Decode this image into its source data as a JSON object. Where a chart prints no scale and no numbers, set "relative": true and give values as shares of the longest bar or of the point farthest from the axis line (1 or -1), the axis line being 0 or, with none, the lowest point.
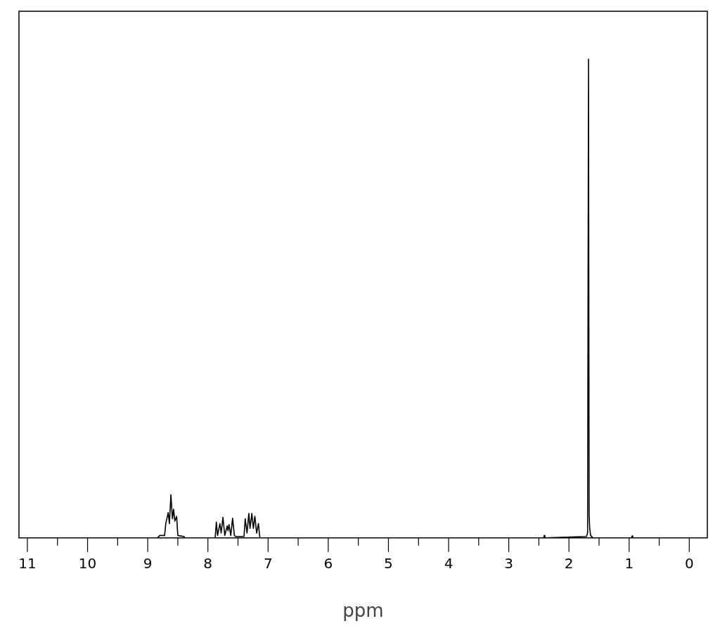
{
  "chart_data": {
    "type": "line",
    "xlabel": "ppm",
    "relative": true,
    "color": "#000000",
    "xlim": [
      11.14,
      -0.3
    ],
    "xticks": [
      11,
      {
        "value": 10.5,
        "label": null
      },
      10,
      {
        "value": 9.5,
        "label": null
      },
      9,
      {
        "value": 8.5,
        "label": null
      },
      8,
      {
        "value": 7.5,
        "label": null
      },
      7,
      {
        "value": 6.5,
        "label": null
      },
      6,
      {
        "value": 5.5,
        "label": null
      },
      5,
      {
        "value": 4.5,
        "label": null
      },
      4,
      {
        "value": 3.5,
        "label": null
      },
      3,
      {
        "value": 2.5,
        "label": null
      },
      2,
      {
        "value": 1.5,
        "label": null
      },
      1,
      {
        "value": 0.5,
        "label": null
      },
      0
    ],
    "x": [
      11.14,
      8.84,
      8.8,
      8.72,
      8.7,
      8.66,
      8.64,
      8.615,
      8.59,
      8.57,
      8.55,
      8.52,
      8.5,
      8.4,
      8.38,
      7.88,
      7.86,
      7.84,
      7.8,
      7.78,
      7.75,
      7.72,
      7.68,
      7.665,
      7.65,
      7.62,
      7.59,
      7.56,
      7.54,
      7.4,
      7.38,
      7.35,
      7.32,
      7.3,
      7.27,
      7.245,
      7.22,
      7.19,
      7.16,
      7.14,
      7.13,
      2.42,
      2.41,
      2.4,
      1.71,
      1.69,
      1.675,
      1.665,
      1.655,
      1.64,
      1.6,
      0.96,
      0.95,
      0.94,
      -0.3
    ],
    "values": [
      0,
      0,
      0.005,
      0.005,
      0.03,
      0.053,
      0.03,
      0.09,
      0.04,
      0.06,
      0.035,
      0.045,
      0.005,
      0.003,
      0,
      0,
      0.033,
      0.005,
      0.03,
      0.01,
      0.043,
      0.005,
      0.025,
      0.015,
      0.028,
      0.005,
      0.041,
      0.005,
      0.003,
      0.003,
      0.04,
      0.01,
      0.051,
      0.02,
      0.051,
      0.02,
      0.045,
      0.01,
      0.03,
      0.003,
      0,
      0,
      0.005,
      0,
      0.003,
      0.01,
      1,
      0.05,
      0.02,
      0.005,
      0,
      0,
      0.004,
      0,
      0
    ]
  }
}
